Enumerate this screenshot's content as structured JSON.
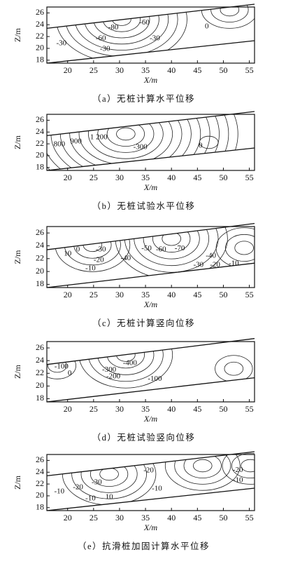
{
  "chart_data": [
    {
      "type": "contour",
      "xlabel": "X/m",
      "ylabel": "Z/m",
      "xlim": [
        16,
        56
      ],
      "ylim": [
        17.5,
        27
      ],
      "xticks": [
        20,
        25,
        30,
        35,
        40,
        45,
        50,
        55
      ],
      "yticks": [
        18,
        20,
        22,
        24,
        26
      ],
      "contour_labels": [
        "-80",
        "-60",
        "-60",
        "-30",
        "-30",
        "-30",
        "0"
      ],
      "caption": "（a）无桩计算水平位移"
    },
    {
      "type": "contour",
      "xlabel": "X/m",
      "ylabel": "Z/m",
      "xlim": [
        16,
        56
      ],
      "ylim": [
        17.5,
        27
      ],
      "xticks": [
        20,
        25,
        30,
        35,
        40,
        45,
        50,
        55
      ],
      "yticks": [
        18,
        20,
        22,
        24,
        26
      ],
      "contour_labels": [
        "1 200",
        "900",
        "800",
        "-300",
        "0"
      ],
      "caption": "（b）无桩试验水平位移"
    },
    {
      "type": "contour",
      "xlabel": "X/m",
      "ylabel": "Z/m",
      "xlim": [
        16,
        56
      ],
      "ylim": [
        17.5,
        27
      ],
      "xticks": [
        20,
        25,
        30,
        35,
        40,
        45,
        50,
        55
      ],
      "yticks": [
        18,
        20,
        22,
        24,
        26
      ],
      "contour_labels": [
        "10",
        "0",
        "-30",
        "-20",
        "-10",
        "-50",
        "-60",
        "-70",
        "-40",
        "-40",
        "-30",
        "-20",
        "-10"
      ],
      "caption": "（c）无桩计算竖向位移"
    },
    {
      "type": "contour",
      "xlabel": "X/m",
      "ylabel": "Z/m",
      "xlim": [
        16,
        56
      ],
      "ylim": [
        17.5,
        27
      ],
      "xticks": [
        20,
        25,
        30,
        35,
        40,
        45,
        50,
        55
      ],
      "yticks": [
        18,
        20,
        22,
        24,
        26
      ],
      "contour_labels": [
        "-100",
        "0",
        "-400",
        "-300",
        "-200",
        "-100"
      ],
      "caption": "（d）无桩试验竖向位移"
    },
    {
      "type": "contour",
      "xlabel": "X/m",
      "ylabel": "Z/m",
      "xlim": [
        16,
        56
      ],
      "ylim": [
        17.5,
        27
      ],
      "xticks": [
        20,
        25,
        30,
        35,
        40,
        45,
        50,
        55
      ],
      "yticks": [
        18,
        20,
        22,
        24,
        26
      ],
      "contour_labels": [
        "-20",
        "-30",
        "-20",
        "-10",
        "-10",
        "-10",
        "10",
        "-20",
        "-10"
      ],
      "caption": "（e）抗滑桩加固计算水平位移"
    }
  ]
}
